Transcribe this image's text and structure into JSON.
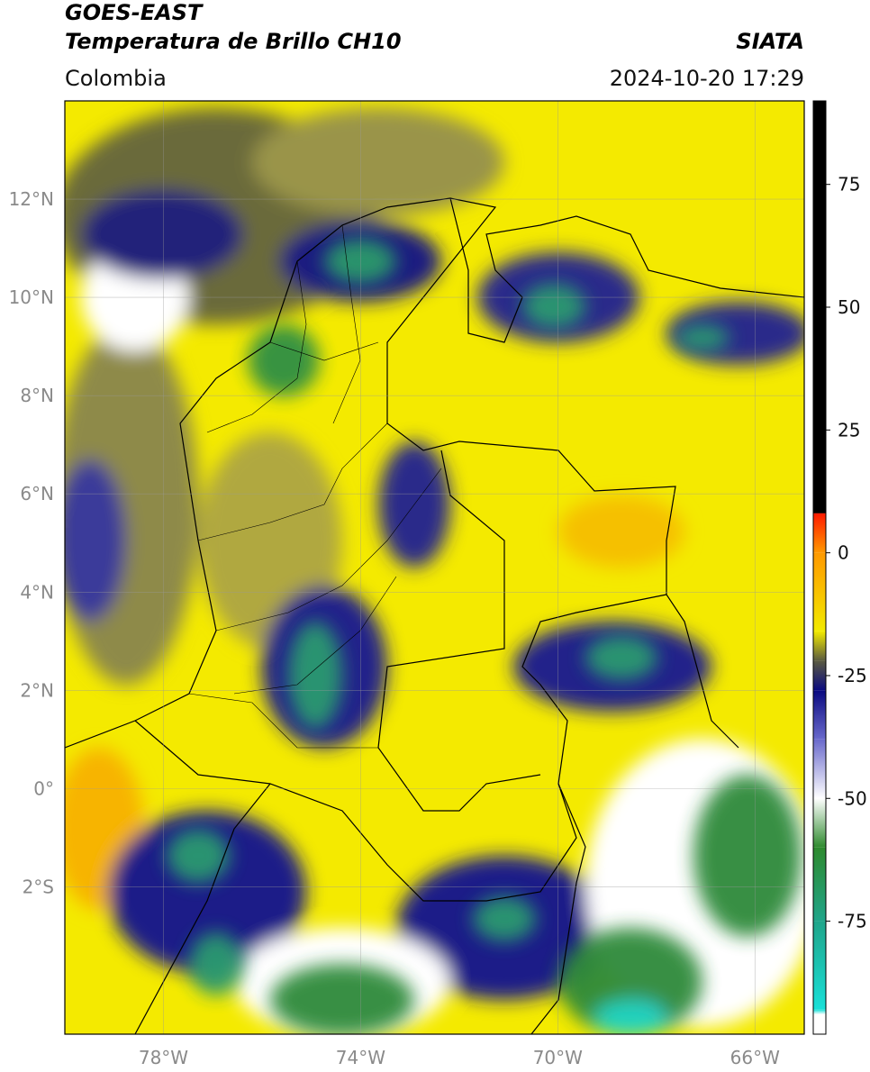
{
  "header": {
    "title_line1": "GOES-EAST",
    "title_line2": "Temperatura de Brillo CH10",
    "source": "SIATA",
    "region": "Colombia",
    "timestamp": "2024-10-20 17:29"
  },
  "map": {
    "xlim": [
      -80,
      -65
    ],
    "ylim": [
      -5,
      14
    ],
    "xticks": [
      {
        "value": -78,
        "label": "78°W"
      },
      {
        "value": -74,
        "label": "74°W"
      },
      {
        "value": -70,
        "label": "70°W"
      },
      {
        "value": -66,
        "label": "66°W"
      }
    ],
    "yticks": [
      {
        "value": 12,
        "label": "12°N"
      },
      {
        "value": 10,
        "label": "10°N"
      },
      {
        "value": 8,
        "label": "8°N"
      },
      {
        "value": 6,
        "label": "6°N"
      },
      {
        "value": 4,
        "label": "4°N"
      },
      {
        "value": 2,
        "label": "2°N"
      },
      {
        "value": 0,
        "label": "0°"
      },
      {
        "value": -2,
        "label": "2°S"
      }
    ],
    "grid": true
  },
  "colorbar": {
    "lim": [
      -98,
      92
    ],
    "ticks": [
      75,
      50,
      25,
      0,
      -25,
      -50,
      -75
    ],
    "stops": [
      {
        "value": -98,
        "color": "#ffffff"
      },
      {
        "value": -94,
        "color": "#ffffff"
      },
      {
        "value": -93,
        "color": "#19e0d8"
      },
      {
        "value": -75,
        "color": "#1fa58a"
      },
      {
        "value": -60,
        "color": "#2e8a2e"
      },
      {
        "value": -50,
        "color": "#ffffff"
      },
      {
        "value": -38,
        "color": "#6a6acc"
      },
      {
        "value": -28,
        "color": "#0a0a80"
      },
      {
        "value": -22,
        "color": "#5a5a40"
      },
      {
        "value": -16,
        "color": "#f2ea00"
      },
      {
        "value": 0,
        "color": "#ff9900"
      },
      {
        "value": 8,
        "color": "#ff1a00"
      },
      {
        "value": 8.1,
        "color": "#000000"
      },
      {
        "value": 92,
        "color": "#000000"
      }
    ]
  }
}
